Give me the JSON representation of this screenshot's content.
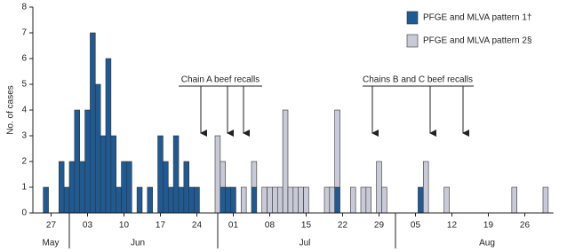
{
  "chart_data": {
    "type": "stacked-bar",
    "y_label": "No. of cases",
    "categories": [
      null,
      null,
      null,
      "27",
      null,
      null,
      null,
      null,
      null,
      null,
      "03",
      null,
      null,
      null,
      null,
      null,
      null,
      "10",
      null,
      null,
      null,
      null,
      null,
      null,
      "17",
      null,
      null,
      null,
      null,
      null,
      null,
      "24",
      null,
      null,
      null,
      null,
      null,
      null,
      "01",
      null,
      null,
      null,
      null,
      null,
      null,
      "08",
      null,
      null,
      null,
      null,
      null,
      null,
      "15",
      null,
      null,
      null,
      null,
      null,
      null,
      "22",
      null,
      null,
      null,
      null,
      null,
      null,
      "29",
      null,
      null,
      null,
      null,
      null,
      null,
      "05",
      null,
      null,
      null,
      null,
      null,
      null,
      "12",
      null,
      null,
      null,
      null,
      null,
      null,
      "19",
      null,
      null,
      null,
      null,
      null,
      null,
      "26",
      null,
      null,
      null,
      null,
      null
    ],
    "months": [
      "May",
      "Jun",
      "Jul",
      "Aug"
    ],
    "series": [
      {
        "name": "PFGE and MLVA pattern 1†",
        "color": "#1f5a93",
        "values": [
          0,
          0,
          1,
          0,
          0,
          2,
          1,
          2,
          4,
          2,
          4,
          7,
          5,
          3,
          6,
          3,
          1,
          2,
          2,
          0,
          1,
          0,
          1,
          0,
          3,
          2,
          1,
          3,
          1,
          2,
          1,
          1,
          0,
          0,
          0,
          0,
          1,
          1,
          1,
          0,
          0,
          0,
          1,
          0,
          0,
          0,
          0,
          0,
          0,
          0,
          0,
          0,
          0,
          0,
          0,
          0,
          0,
          0,
          1,
          0,
          0,
          0,
          0,
          0,
          0,
          0,
          0,
          0,
          0,
          0,
          0,
          0,
          0,
          0,
          1,
          0,
          0,
          0,
          0,
          0,
          0,
          0,
          0,
          0,
          0,
          0,
          0,
          0,
          0,
          0,
          0,
          0,
          0,
          0,
          0,
          0,
          0,
          0,
          0,
          0
        ]
      },
      {
        "name": "PFGE and MLVA pattern 2§",
        "color": "#c9cad8",
        "values": [
          0,
          0,
          0,
          0,
          0,
          0,
          0,
          0,
          0,
          0,
          0,
          0,
          0,
          0,
          0,
          0,
          0,
          0,
          0,
          0,
          0,
          0,
          0,
          0,
          0,
          0,
          0,
          0,
          0,
          0,
          0,
          0,
          0,
          0,
          0,
          3,
          1,
          0,
          0,
          0,
          1,
          0,
          1,
          0,
          1,
          1,
          1,
          1,
          4,
          1,
          1,
          1,
          1,
          0,
          0,
          0,
          1,
          1,
          3,
          0,
          0,
          1,
          0,
          1,
          1,
          0,
          2,
          1,
          0,
          0,
          0,
          0,
          0,
          0,
          0,
          2,
          0,
          0,
          0,
          1,
          0,
          0,
          0,
          0,
          0,
          0,
          0,
          0,
          0,
          0,
          0,
          0,
          1,
          0,
          0,
          0,
          0,
          0,
          1,
          0
        ]
      }
    ],
    "ylim": [
      0,
      8
    ],
    "yticks": [
      0,
      1,
      2,
      3,
      4,
      5,
      6,
      7,
      8
    ],
    "annotations": [
      "Chain A beef recalls",
      "Chains B and C beef recalls"
    ],
    "legend": "top-right"
  }
}
